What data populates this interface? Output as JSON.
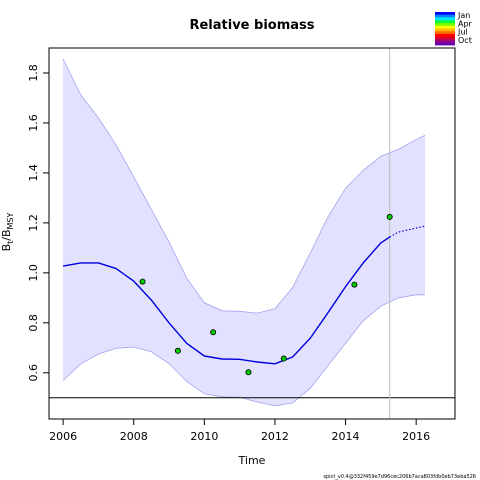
{
  "chart_data": {
    "type": "line",
    "title": "Relative biomass",
    "xlabel": "Time",
    "ylabel": "B_t/B_MSY",
    "xlim": [
      2005.6,
      2017.1
    ],
    "ylim": [
      0.415,
      1.9
    ],
    "x_ticks": [
      "2006",
      "2008",
      "2010",
      "2012",
      "2014",
      "2016"
    ],
    "y_ticks": [
      "0.6",
      "0.8",
      "1.0",
      "1.2",
      "1.4",
      "1.6",
      "1.8"
    ],
    "reference_line_y": 0.5,
    "vertical_line_x": 2015.25,
    "observations": {
      "x": [
        2008.25,
        2009.25,
        2010.25,
        2011.25,
        2012.25,
        2014.25,
        2015.25
      ],
      "y": [
        0.965,
        0.688,
        0.762,
        0.602,
        0.657,
        0.953,
        1.224
      ]
    },
    "estimate": {
      "x": [
        2006.0,
        2006.5,
        2007.0,
        2007.5,
        2008.0,
        2008.5,
        2009.0,
        2009.5,
        2010.0,
        2010.5,
        2011.0,
        2011.5,
        2012.0,
        2012.5,
        2013.0,
        2013.5,
        2014.0,
        2014.5,
        2015.0,
        2015.25
      ],
      "y": [
        1.027,
        1.04,
        1.04,
        1.017,
        0.967,
        0.891,
        0.8,
        0.718,
        0.667,
        0.655,
        0.654,
        0.643,
        0.636,
        0.663,
        0.739,
        0.84,
        0.945,
        1.04,
        1.12,
        1.143
      ]
    },
    "forecast": {
      "x": [
        2015.25,
        2015.5,
        2016.0,
        2016.25
      ],
      "y": [
        1.143,
        1.163,
        1.179,
        1.187
      ]
    },
    "ci_upper": {
      "x": [
        2006.0,
        2006.5,
        2007.0,
        2007.5,
        2008.0,
        2008.5,
        2009.0,
        2009.5,
        2010.0,
        2010.5,
        2011.0,
        2011.5,
        2012.0,
        2012.5,
        2013.0,
        2013.5,
        2014.0,
        2014.5,
        2015.0,
        2015.5,
        2016.0,
        2016.25
      ],
      "y": [
        1.856,
        1.712,
        1.62,
        1.512,
        1.384,
        1.254,
        1.124,
        0.979,
        0.88,
        0.848,
        0.846,
        0.839,
        0.856,
        0.941,
        1.08,
        1.223,
        1.339,
        1.41,
        1.467,
        1.495,
        1.533,
        1.551
      ]
    },
    "ci_lower": {
      "x": [
        2006.0,
        2006.5,
        2007.0,
        2007.5,
        2008.0,
        2008.5,
        2009.0,
        2009.5,
        2010.0,
        2010.5,
        2011.0,
        2011.5,
        2012.0,
        2012.5,
        2013.0,
        2013.5,
        2014.0,
        2014.5,
        2015.0,
        2015.5,
        2016.0,
        2016.25
      ],
      "y": [
        0.569,
        0.636,
        0.675,
        0.698,
        0.703,
        0.684,
        0.637,
        0.565,
        0.516,
        0.504,
        0.502,
        0.483,
        0.468,
        0.479,
        0.538,
        0.628,
        0.718,
        0.808,
        0.867,
        0.9,
        0.912,
        0.912
      ]
    },
    "legend": {
      "position": "top-right",
      "labels": [
        "Jan",
        "Apr",
        "Jul",
        "Oct"
      ],
      "colors": [
        "#0000ff",
        "#008bff",
        "#00e8ff",
        "#00ff3a",
        "#75ff00",
        "#ffff00",
        "#ffbb00",
        "#ff6a00",
        "#ff0000",
        "#d80030",
        "#a0007a",
        "#6a00b0"
      ]
    },
    "colors": {
      "estimate": "#0000dd",
      "ci_fill": "#e2e2ff",
      "ci_border": "#a3a3f0",
      "point_fill": "#00cc00",
      "vertical_line": "#bbbbbb"
    },
    "footnote": "spict_v0.4@332f459e7d96cec206b7aca803fdb0eb73eba526"
  }
}
